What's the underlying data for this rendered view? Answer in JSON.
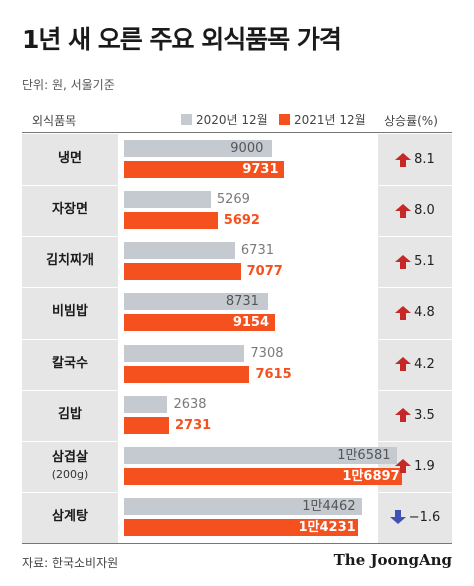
{
  "title": "1년 새 오른 주요 외식품목 가격",
  "unit_note": "단위: 원, 서울기준",
  "column_headers": {
    "item": "외식품목",
    "change": "상승률(%)"
  },
  "legend": {
    "y2020": "2020년 12월",
    "y2021": "2021년 12월"
  },
  "colors": {
    "y2020": "#c5cad0",
    "y2021": "#f4511e",
    "up": "#c62828",
    "down": "#3f51b5"
  },
  "source": "자료: 한국소비자원",
  "brand": "The JoongAng",
  "chart_data": {
    "type": "bar",
    "orientation": "horizontal",
    "categories": [
      "냉면",
      "자장면",
      "김치찌개",
      "비빔밥",
      "칼국수",
      "김밥",
      "삼겹살",
      "삼계탕"
    ],
    "category_sub": [
      "",
      "",
      "",
      "",
      "",
      "",
      "(200g)",
      ""
    ],
    "series": [
      {
        "name": "2020년 12월",
        "values": [
          9000,
          5269,
          6731,
          8731,
          7308,
          2638,
          16581,
          14462
        ],
        "labels": [
          "9000",
          "5269",
          "6731",
          "8731",
          "7308",
          "2638",
          "1만6581",
          "1만4462"
        ]
      },
      {
        "name": "2021년 12월",
        "values": [
          9731,
          5692,
          7077,
          9154,
          7615,
          2731,
          16897,
          14231
        ],
        "labels": [
          "9731",
          "5692",
          "7077",
          "9154",
          "7615",
          "2731",
          "1만6897",
          "1만4231"
        ]
      }
    ],
    "change_pct": [
      8.1,
      8.0,
      5.1,
      4.8,
      4.2,
      3.5,
      1.9,
      -1.6
    ],
    "change_labels": [
      "8.1",
      "8.0",
      "5.1",
      "4.8",
      "4.2",
      "3.5",
      "1.9",
      "−1.6"
    ],
    "xlim": [
      0,
      17600
    ]
  }
}
